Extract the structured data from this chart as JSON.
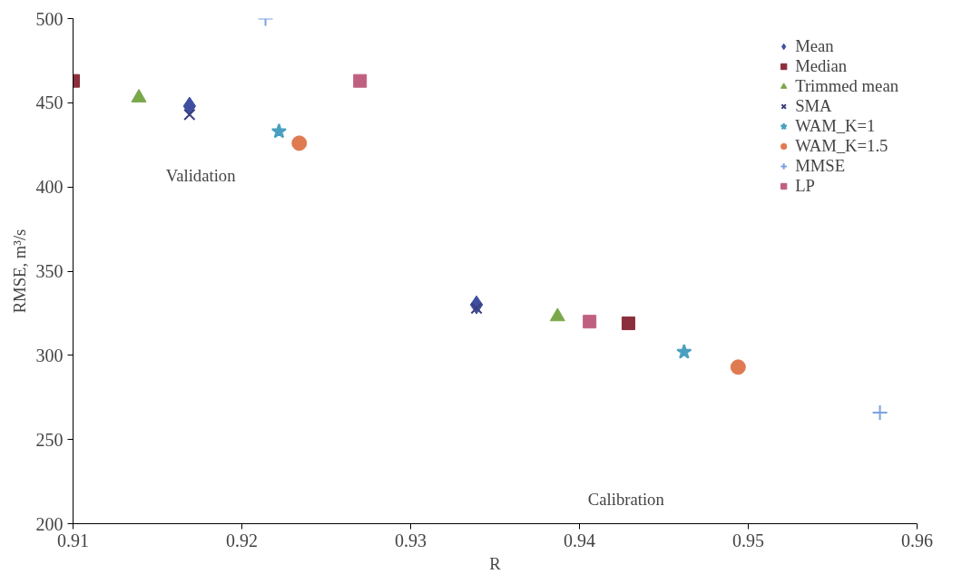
{
  "chart_data": {
    "type": "scatter",
    "xlabel": "R",
    "ylabel": "RMSE, m³/s",
    "xlim": [
      0.91,
      0.96
    ],
    "xticks": [
      {
        "value": 0.91,
        "label": "0.91"
      },
      {
        "value": 0.92,
        "label": "0.92"
      },
      {
        "value": 0.93,
        "label": "0.93"
      },
      {
        "value": 0.94,
        "label": "0.94"
      },
      {
        "value": 0.95,
        "label": "0.95"
      },
      {
        "value": 0.96,
        "label": "0.96"
      }
    ],
    "ylim": [
      200,
      500
    ],
    "yticks": [
      200,
      250,
      300,
      350,
      400,
      450,
      500
    ],
    "grid": false,
    "legend": "top right",
    "annotations": [
      "Validation",
      "Calibration"
    ],
    "series": [
      {
        "name": "Mean",
        "color": "#3f4fa0",
        "marker": "diamond",
        "x": [
          0.9169,
          0.9339
        ],
        "values": [
          448,
          330
        ]
      },
      {
        "name": "Median",
        "color": "#8b2f3c",
        "marker": "square",
        "x": [
          0.91,
          0.9429
        ],
        "values": [
          463,
          319
        ]
      },
      {
        "name": "Trimmed mean",
        "color": "#7aa84a",
        "marker": "triangle",
        "x": [
          0.9139,
          0.9387
        ],
        "values": [
          453,
          323
        ]
      },
      {
        "name": "SMA",
        "color": "#3a3f7f",
        "marker": "cross",
        "x": [
          0.9169,
          0.9339
        ],
        "values": [
          443,
          328
        ]
      },
      {
        "name": "WAM_K=1",
        "color": "#4aa0c0",
        "marker": "star",
        "x": [
          0.9222,
          0.9462
        ],
        "values": [
          433,
          302
        ]
      },
      {
        "name": "WAM_K=1.5",
        "color": "#e07a50",
        "marker": "circle",
        "x": [
          0.9234,
          0.9494
        ],
        "values": [
          426,
          293
        ]
      },
      {
        "name": "MMSE",
        "color": "#7aa0e0",
        "marker": "cross",
        "x": [
          0.9214,
          0.9578
        ],
        "values": [
          500,
          266
        ]
      },
      {
        "name": "LP",
        "color": "#c06080",
        "marker": "square",
        "x": [
          0.927,
          0.9406
        ],
        "values": [
          463,
          320
        ]
      }
    ]
  }
}
